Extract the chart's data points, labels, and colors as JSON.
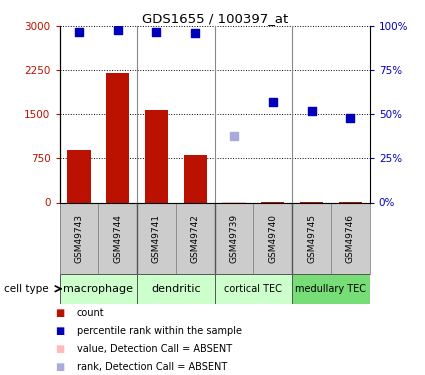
{
  "title": "GDS1655 / 100397_at",
  "samples": [
    "GSM49743",
    "GSM49744",
    "GSM49741",
    "GSM49742",
    "GSM49739",
    "GSM49740",
    "GSM49745",
    "GSM49746"
  ],
  "bar_values": [
    900,
    2200,
    1580,
    810,
    5,
    5,
    5,
    5
  ],
  "bar_absent": [
    false,
    false,
    false,
    false,
    true,
    false,
    false,
    false
  ],
  "rank_values": [
    97,
    98,
    97,
    96,
    null,
    57,
    52,
    48
  ],
  "rank_absent": [
    false,
    false,
    false,
    false,
    false,
    false,
    false,
    false
  ],
  "absent_rank_value": 38,
  "absent_rank_idx": 4,
  "cell_types": [
    {
      "label": "macrophage",
      "start": 0,
      "end": 2,
      "color": "#ccffcc"
    },
    {
      "label": "dendritic",
      "start": 2,
      "end": 4,
      "color": "#ccffcc"
    },
    {
      "label": "cortical TEC",
      "start": 4,
      "end": 6,
      "color": "#ccffcc"
    },
    {
      "label": "medullary TEC",
      "start": 6,
      "end": 8,
      "color": "#77dd77"
    }
  ],
  "ylim_left": [
    0,
    3000
  ],
  "ylim_right": [
    0,
    100
  ],
  "yticks_left": [
    0,
    750,
    1500,
    2250,
    3000
  ],
  "ytick_labels_left": [
    "0",
    "750",
    "1500",
    "2250",
    "3000"
  ],
  "yticks_right": [
    0,
    25,
    50,
    75,
    100
  ],
  "ytick_labels_right": [
    "0%",
    "25%",
    "50%",
    "75%",
    "100%"
  ],
  "bar_color": "#bb1100",
  "bar_absent_color": "#ffbbbb",
  "rank_color": "#0000bb",
  "rank_absent_color": "#aaaadd",
  "sample_box_color": "#cccccc",
  "group_sep_color": "#888888",
  "legend_items": [
    {
      "label": "count",
      "color": "#bb1100"
    },
    {
      "label": "percentile rank within the sample",
      "color": "#0000bb"
    },
    {
      "label": "value, Detection Call = ABSENT",
      "color": "#ffbbbb"
    },
    {
      "label": "rank, Detection Call = ABSENT",
      "color": "#aaaadd"
    }
  ]
}
